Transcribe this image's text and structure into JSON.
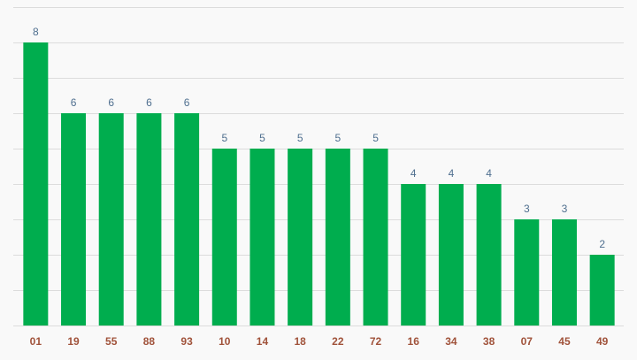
{
  "chart_data": {
    "type": "bar",
    "categories": [
      "01",
      "19",
      "55",
      "88",
      "93",
      "10",
      "14",
      "18",
      "22",
      "72",
      "16",
      "34",
      "38",
      "07",
      "45",
      "49"
    ],
    "values": [
      8,
      6,
      6,
      6,
      6,
      5,
      5,
      5,
      5,
      5,
      4,
      4,
      4,
      3,
      3,
      2
    ],
    "title": "",
    "xlabel": "",
    "ylabel": "",
    "ylim": [
      0,
      9
    ],
    "grid": true,
    "bar_color": "#00ad4e",
    "value_label_color": "#4f6f8f",
    "category_label_color": "#a0523a"
  }
}
